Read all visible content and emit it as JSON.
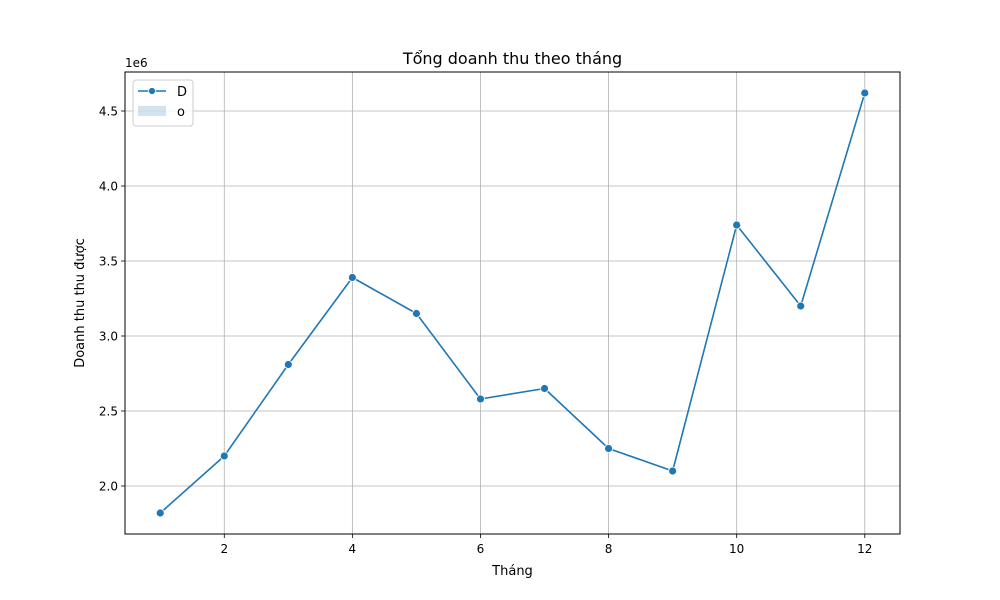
{
  "chart_data": {
    "type": "line",
    "title": "Tổng doanh thu theo tháng",
    "xlabel": "Tháng",
    "ylabel": "Doanh thu thu được",
    "y_offset_label": "1e6",
    "y_scale_factor": 1000000,
    "x": [
      1,
      2,
      3,
      4,
      5,
      6,
      7,
      8,
      9,
      10,
      11,
      12
    ],
    "series": [
      {
        "values": [
          1820000,
          2200000,
          2810000,
          3390000,
          3150000,
          2580000,
          2650000,
          2250000,
          2100000,
          3740000,
          3200000,
          4620000
        ],
        "color": "#1f77b4",
        "marker": "circle"
      }
    ],
    "xlim": [
      0.45,
      12.55
    ],
    "ylim": [
      1680000,
      4760000
    ],
    "x_ticks": [
      2,
      4,
      6,
      8,
      10,
      12
    ],
    "x_tick_labels": [
      "2",
      "4",
      "6",
      "8",
      "10",
      "12"
    ],
    "y_ticks": [
      2000000,
      2500000,
      3000000,
      3500000,
      4000000,
      4500000
    ],
    "y_tick_labels": [
      "2.0",
      "2.5",
      "3.0",
      "3.5",
      "4.0",
      "4.5"
    ],
    "grid": true,
    "legend_position": "upper-left",
    "legend": [
      {
        "label": "D",
        "kind": "line",
        "color": "#1f77b4"
      },
      {
        "label": "o",
        "kind": "band",
        "color": "#1f77b4"
      }
    ]
  }
}
